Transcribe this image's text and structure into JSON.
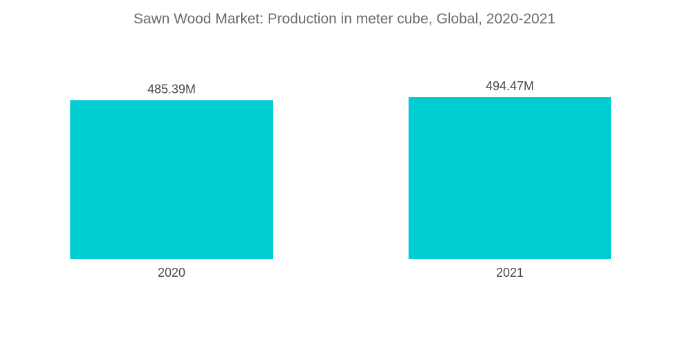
{
  "chart_data": {
    "type": "bar",
    "title": "Sawn Wood Market: Production in meter cube, Global, 2020-2021",
    "categories": [
      "2020",
      "2021"
    ],
    "values": [
      485.39,
      494.47
    ],
    "data_labels": [
      "485.39M",
      "494.47M"
    ],
    "unit": "M",
    "xlabel": "",
    "ylabel": "",
    "ylim": [
      0,
      520
    ],
    "grid": false,
    "legend": "none",
    "bar_color": "#00CED1"
  }
}
